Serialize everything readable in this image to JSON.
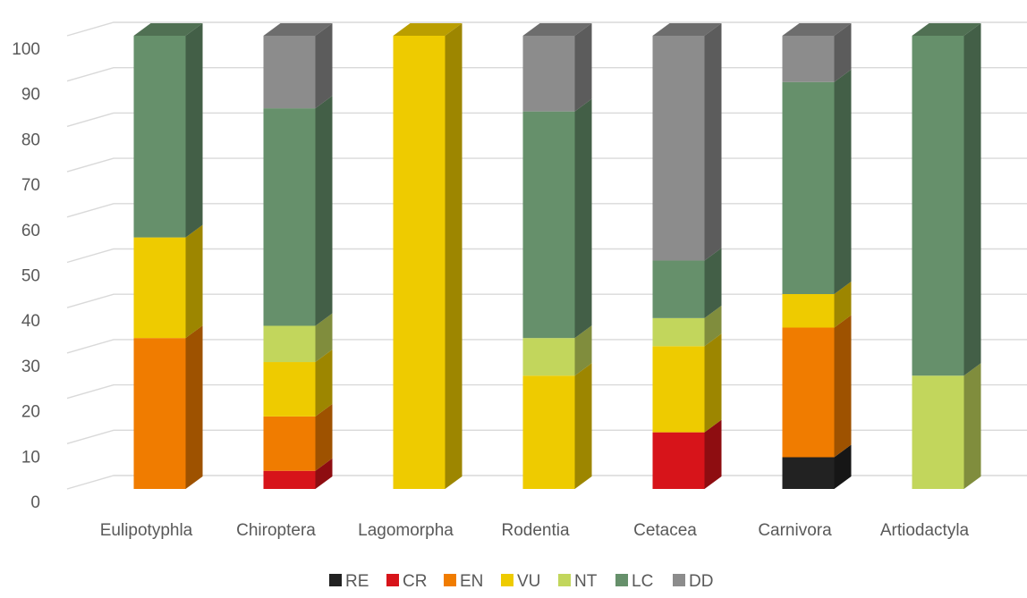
{
  "chart_data": {
    "type": "bar",
    "stacked": true,
    "three_d": true,
    "categories": [
      "Eulipotyphla",
      "Chiroptera",
      "Lagomorpha",
      "Rodentia",
      "Cetacea",
      "Carnivora",
      "Artiodactyla"
    ],
    "series": [
      {
        "name": "RE",
        "color": "#222222",
        "values": [
          0,
          0,
          0,
          0,
          0,
          7,
          0
        ]
      },
      {
        "name": "CR",
        "color": "#d7141a",
        "values": [
          0,
          4,
          0,
          0,
          12.5,
          0,
          0
        ]
      },
      {
        "name": "EN",
        "color": "#f07c00",
        "values": [
          33.3,
          12,
          0,
          0,
          0,
          28.6,
          0
        ]
      },
      {
        "name": "VU",
        "color": "#eecb00",
        "values": [
          22.2,
          12,
          100,
          25,
          19,
          7.4,
          0
        ]
      },
      {
        "name": "NT",
        "color": "#c2d65c",
        "values": [
          0,
          8,
          0,
          8.3,
          6.2,
          0,
          25
        ]
      },
      {
        "name": "LC",
        "color": "#66906b",
        "values": [
          44.5,
          48,
          0,
          50,
          12.7,
          46.8,
          75
        ]
      },
      {
        "name": "DD",
        "color": "#8c8c8c",
        "values": [
          0,
          16,
          0,
          16.7,
          49.6,
          10.2,
          0
        ]
      }
    ],
    "ylim": [
      0,
      100
    ],
    "yticks": [
      "0",
      "10",
      "20",
      "30",
      "40",
      "50",
      "60",
      "70",
      "80",
      "90",
      "100"
    ],
    "grid": true,
    "legend": "bottom",
    "title": "",
    "xlabel": "",
    "ylabel": ""
  }
}
